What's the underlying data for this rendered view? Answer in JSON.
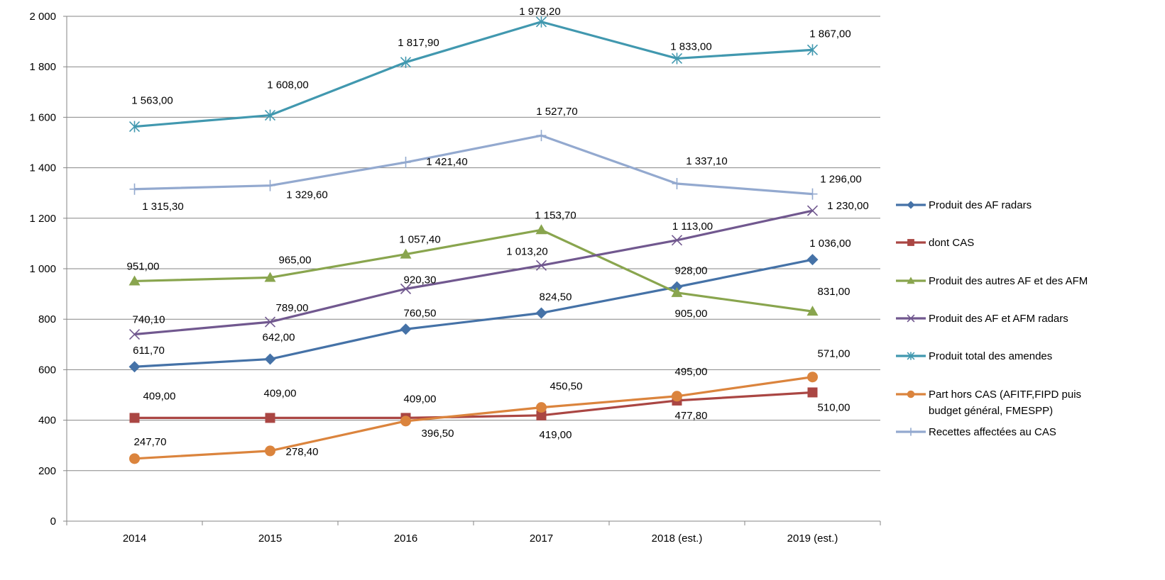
{
  "chart_data": {
    "type": "line",
    "title": "",
    "xlabel": "",
    "ylabel": "",
    "categories": [
      "2014",
      "2015",
      "2016",
      "2017",
      "2018 (est.)",
      "2019 (est.)"
    ],
    "ylim": [
      0,
      2000
    ],
    "yticks": [
      0,
      200,
      400,
      600,
      800,
      1000,
      1200,
      1400,
      1600,
      1800,
      2000
    ],
    "ytick_labels": [
      "0",
      "200",
      "400",
      "600",
      "800",
      "1 000",
      "1 200",
      "1 400",
      "1 600",
      "1 800",
      "2 000"
    ],
    "grid": true,
    "legend_position": "right",
    "series": [
      {
        "name": "Produit des AF radars",
        "color": "#4572A7",
        "marker": "diamond",
        "values": [
          611.7,
          642.0,
          760.5,
          824.5,
          928.0,
          1036.0
        ],
        "labels": [
          "611,70",
          "642,00",
          "760,50",
          "824,50",
          "928,00",
          "1 036,00"
        ]
      },
      {
        "name": "dont CAS",
        "color": "#AA4643",
        "marker": "square",
        "values": [
          409.0,
          409.0,
          409.0,
          419.0,
          477.8,
          510.0
        ],
        "labels": [
          "409,00",
          "409,00",
          "409,00",
          "419,00",
          "477,80",
          "510,00"
        ]
      },
      {
        "name": "Produit des autres AF et des AFM",
        "color": "#89A54E",
        "marker": "triangle",
        "values": [
          951.0,
          965.0,
          1057.4,
          1153.7,
          905.0,
          831.0
        ],
        "labels": [
          "951,00",
          "965,00",
          "1 057,40",
          "1 153,70",
          "905,00",
          "831,00"
        ]
      },
      {
        "name": "Produit des AF et AFM radars",
        "color": "#71588F",
        "marker": "x",
        "values": [
          740.1,
          789.0,
          920.3,
          1013.2,
          1113.0,
          1230.0
        ],
        "labels": [
          "740,10",
          "789,00",
          "920,30",
          "1 013,20",
          "1 113,00",
          "1 230,00"
        ]
      },
      {
        "name": "Produit total des amendes",
        "color": "#4198AF",
        "marker": "star",
        "values": [
          1563.0,
          1608.0,
          1817.9,
          1978.2,
          1833.0,
          1867.0
        ],
        "labels": [
          "1 563,00",
          "1 608,00",
          "1 817,90",
          "1 978,20",
          "1 833,00",
          "1 867,00"
        ]
      },
      {
        "name": "Part hors CAS (AFITF,FIPD puis budget général, FMESPP)",
        "color": "#DB843D",
        "marker": "circle",
        "legend_lines": [
          "Part hors CAS (AFITF,FIPD puis",
          "budget général, FMESPP)"
        ],
        "values": [
          247.7,
          278.4,
          396.5,
          450.5,
          495.0,
          571.0
        ],
        "labels": [
          "247,70",
          "278,40",
          "396,50",
          "450,50",
          "495,00",
          "571,00"
        ]
      },
      {
        "name": "Recettes affectées au CAS",
        "color": "#93A9CF",
        "marker": "plus",
        "values": [
          1315.3,
          1329.6,
          1421.4,
          1527.7,
          1337.1,
          1296.0
        ],
        "labels": [
          "1 315,30",
          "1 329,60",
          "1 421,40",
          "1 527,70",
          "1 337,10",
          "1 296,00"
        ]
      }
    ]
  }
}
